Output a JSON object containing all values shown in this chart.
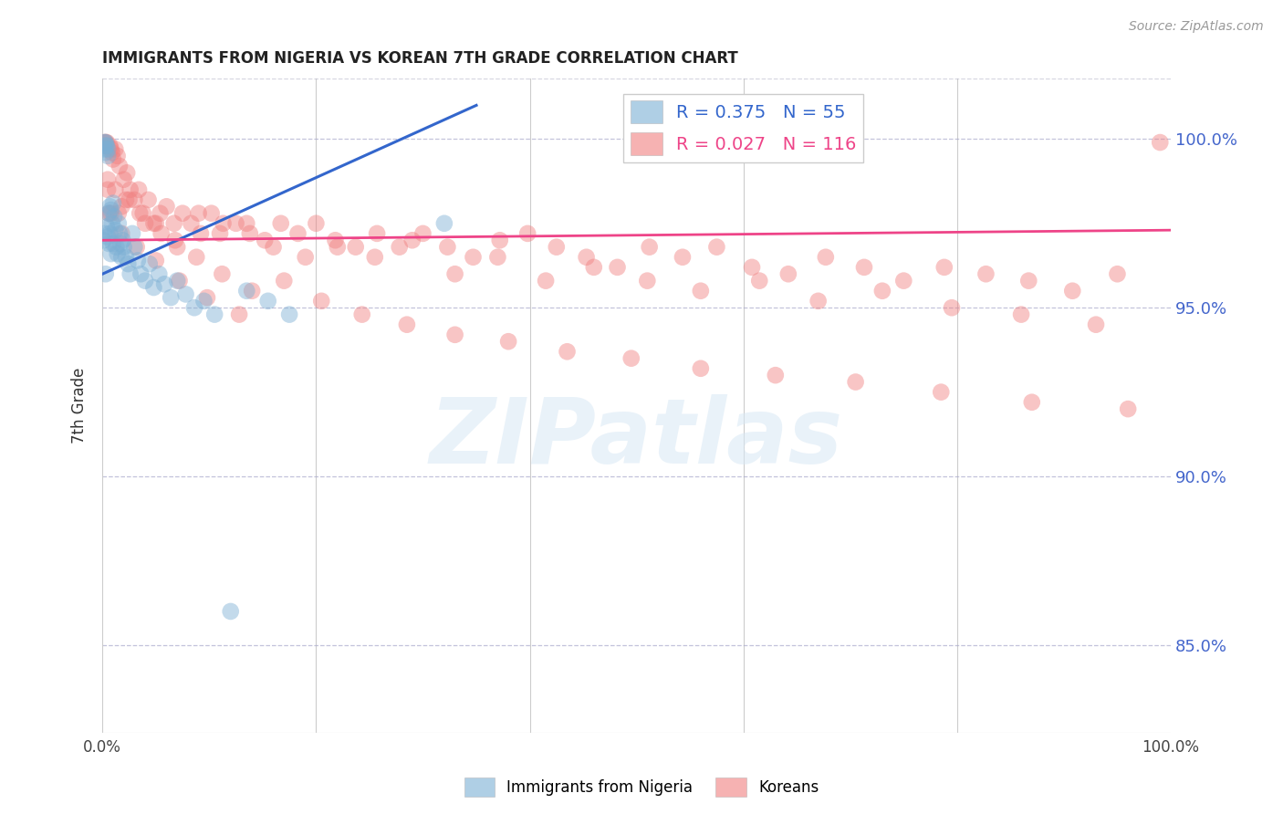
{
  "title": "IMMIGRANTS FROM NIGERIA VS KOREAN 7TH GRADE CORRELATION CHART",
  "source": "Source: ZipAtlas.com",
  "ylabel": "7th Grade",
  "ytick_labels": [
    "85.0%",
    "90.0%",
    "95.0%",
    "100.0%"
  ],
  "ytick_values": [
    0.85,
    0.9,
    0.95,
    1.0
  ],
  "xlim": [
    0.0,
    1.0
  ],
  "ylim": [
    0.824,
    1.018
  ],
  "nigeria_color": "#7BAFD4",
  "korean_color": "#F08080",
  "nigeria_R": 0.375,
  "nigeria_N": 55,
  "korean_R": 0.027,
  "korean_N": 116,
  "legend_label_nigeria": "Immigrants from Nigeria",
  "legend_label_korean": "Koreans",
  "watermark": "ZIPatlas",
  "nigeria_scatter_x": [
    0.001,
    0.002,
    0.002,
    0.002,
    0.003,
    0.003,
    0.003,
    0.004,
    0.004,
    0.005,
    0.005,
    0.005,
    0.006,
    0.006,
    0.007,
    0.007,
    0.008,
    0.008,
    0.009,
    0.01,
    0.01,
    0.011,
    0.012,
    0.013,
    0.014,
    0.015,
    0.016,
    0.017,
    0.018,
    0.019,
    0.02,
    0.022,
    0.024,
    0.026,
    0.028,
    0.03,
    0.033,
    0.036,
    0.04,
    0.044,
    0.048,
    0.053,
    0.058,
    0.064,
    0.07,
    0.078,
    0.086,
    0.095,
    0.105,
    0.12,
    0.135,
    0.155,
    0.175,
    0.32,
    0.003
  ],
  "nigeria_scatter_y": [
    0.97,
    0.997,
    0.999,
    0.972,
    0.999,
    0.998,
    0.996,
    0.998,
    0.974,
    0.997,
    0.995,
    0.971,
    0.978,
    0.969,
    0.98,
    0.972,
    0.979,
    0.966,
    0.975,
    0.981,
    0.969,
    0.977,
    0.973,
    0.968,
    0.966,
    0.975,
    0.972,
    0.969,
    0.965,
    0.97,
    0.968,
    0.965,
    0.963,
    0.96,
    0.972,
    0.968,
    0.964,
    0.96,
    0.958,
    0.963,
    0.956,
    0.96,
    0.957,
    0.953,
    0.958,
    0.954,
    0.95,
    0.952,
    0.948,
    0.86,
    0.955,
    0.952,
    0.948,
    0.975,
    0.96
  ],
  "korean_scatter_x": [
    0.002,
    0.003,
    0.004,
    0.005,
    0.006,
    0.007,
    0.008,
    0.009,
    0.01,
    0.012,
    0.014,
    0.016,
    0.018,
    0.02,
    0.023,
    0.026,
    0.03,
    0.034,
    0.038,
    0.043,
    0.048,
    0.054,
    0.06,
    0.067,
    0.075,
    0.083,
    0.092,
    0.102,
    0.113,
    0.125,
    0.138,
    0.152,
    0.167,
    0.183,
    0.2,
    0.218,
    0.237,
    0.257,
    0.278,
    0.3,
    0.323,
    0.347,
    0.372,
    0.398,
    0.425,
    0.453,
    0.482,
    0.512,
    0.543,
    0.575,
    0.608,
    0.642,
    0.677,
    0.713,
    0.75,
    0.788,
    0.827,
    0.867,
    0.908,
    0.95,
    0.99,
    0.015,
    0.025,
    0.04,
    0.055,
    0.07,
    0.09,
    0.11,
    0.135,
    0.16,
    0.19,
    0.22,
    0.255,
    0.29,
    0.33,
    0.37,
    0.415,
    0.46,
    0.51,
    0.56,
    0.615,
    0.67,
    0.73,
    0.795,
    0.86,
    0.93,
    0.005,
    0.012,
    0.022,
    0.035,
    0.05,
    0.068,
    0.088,
    0.112,
    0.14,
    0.17,
    0.205,
    0.243,
    0.285,
    0.33,
    0.38,
    0.435,
    0.495,
    0.56,
    0.63,
    0.705,
    0.785,
    0.87,
    0.96,
    0.008,
    0.018,
    0.032,
    0.05,
    0.072,
    0.098,
    0.128
  ],
  "korean_scatter_y": [
    0.999,
    0.999,
    0.999,
    0.985,
    0.978,
    0.998,
    0.997,
    0.996,
    0.994,
    0.997,
    0.995,
    0.992,
    0.98,
    0.988,
    0.99,
    0.985,
    0.982,
    0.985,
    0.978,
    0.982,
    0.975,
    0.978,
    0.98,
    0.975,
    0.978,
    0.975,
    0.972,
    0.978,
    0.975,
    0.975,
    0.972,
    0.97,
    0.975,
    0.972,
    0.975,
    0.97,
    0.968,
    0.972,
    0.968,
    0.972,
    0.968,
    0.965,
    0.97,
    0.972,
    0.968,
    0.965,
    0.962,
    0.968,
    0.965,
    0.968,
    0.962,
    0.96,
    0.965,
    0.962,
    0.958,
    0.962,
    0.96,
    0.958,
    0.955,
    0.96,
    0.999,
    0.978,
    0.982,
    0.975,
    0.972,
    0.968,
    0.978,
    0.972,
    0.975,
    0.968,
    0.965,
    0.968,
    0.965,
    0.97,
    0.96,
    0.965,
    0.958,
    0.962,
    0.958,
    0.955,
    0.958,
    0.952,
    0.955,
    0.95,
    0.948,
    0.945,
    0.988,
    0.985,
    0.982,
    0.978,
    0.975,
    0.97,
    0.965,
    0.96,
    0.955,
    0.958,
    0.952,
    0.948,
    0.945,
    0.942,
    0.94,
    0.937,
    0.935,
    0.932,
    0.93,
    0.928,
    0.925,
    0.922,
    0.92,
    0.978,
    0.972,
    0.968,
    0.964,
    0.958,
    0.953,
    0.948
  ],
  "nigeria_trendline_x": [
    0.0,
    0.35
  ],
  "nigeria_trendline_y": [
    0.96,
    1.01
  ],
  "korean_trendline_x": [
    0.0,
    1.0
  ],
  "korean_trendline_y": [
    0.97,
    0.973
  ]
}
